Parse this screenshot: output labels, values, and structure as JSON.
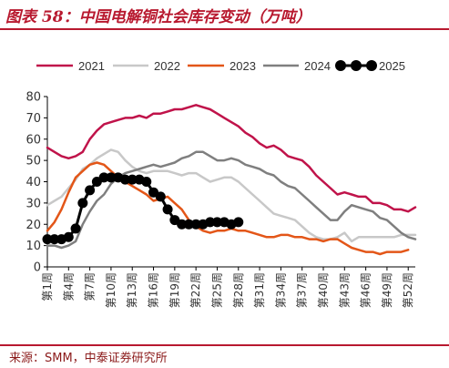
{
  "header": {
    "title": "图表 58：中国电解铜社会库存变动（万吨）"
  },
  "footer": {
    "source": "来源：SMM，中泰证券研究所"
  },
  "colors": {
    "accent": "#b8192f",
    "footer_text": "#8b1a1a"
  },
  "chart_data": {
    "type": "line",
    "title": "",
    "xlabel": "",
    "ylabel": "",
    "ylim": [
      0,
      80
    ],
    "yticks": [
      0,
      10,
      20,
      30,
      40,
      50,
      60,
      70,
      80
    ],
    "x_tick_labels": [
      "第1周",
      "第4周",
      "第7周",
      "第10周",
      "第13周",
      "第16周",
      "第19周",
      "第22周",
      "第25周",
      "第28周",
      "第31周",
      "第34周",
      "第37周",
      "第40周",
      "第43周",
      "第46周",
      "第49周",
      "第52周"
    ],
    "x_tick_weeks": [
      1,
      4,
      7,
      10,
      13,
      16,
      19,
      22,
      25,
      28,
      31,
      34,
      37,
      40,
      43,
      46,
      49,
      52
    ],
    "grid": false,
    "legend_position": "top",
    "series": [
      {
        "name": "2021",
        "color": "#c0134a",
        "marker": false,
        "weeks": [
          1,
          2,
          3,
          4,
          5,
          6,
          7,
          8,
          9,
          10,
          11,
          12,
          13,
          14,
          15,
          16,
          17,
          18,
          19,
          20,
          21,
          22,
          23,
          24,
          25,
          26,
          27,
          28,
          29,
          30,
          31,
          32,
          33,
          34,
          35,
          36,
          37,
          38,
          39,
          40,
          41,
          42,
          43,
          44,
          45,
          46,
          47,
          48,
          49,
          50,
          51,
          52,
          53
        ],
        "values": [
          56,
          54,
          52,
          51,
          52,
          54,
          60,
          64,
          67,
          68,
          69,
          70,
          70,
          71,
          70,
          72,
          72,
          73,
          74,
          74,
          75,
          76,
          75,
          74,
          72,
          70,
          68,
          66,
          63,
          61,
          58,
          56,
          57,
          55,
          52,
          51,
          50,
          47,
          43,
          40,
          37,
          34,
          35,
          34,
          33,
          33,
          30,
          30,
          29,
          27,
          27,
          26,
          28
        ]
      },
      {
        "name": "2022",
        "color": "#c8c8c8",
        "marker": false,
        "weeks": [
          1,
          2,
          3,
          4,
          5,
          6,
          7,
          8,
          9,
          10,
          11,
          12,
          13,
          14,
          15,
          16,
          17,
          18,
          19,
          20,
          21,
          22,
          23,
          24,
          25,
          26,
          27,
          28,
          29,
          30,
          31,
          32,
          33,
          34,
          35,
          36,
          37,
          38,
          39,
          40,
          41,
          42,
          43,
          44,
          45,
          46,
          47,
          48,
          49,
          50,
          51,
          52,
          53
        ],
        "values": [
          29,
          31,
          33,
          37,
          41,
          46,
          48,
          51,
          53,
          55,
          54,
          50,
          47,
          45,
          44,
          45,
          45,
          45,
          44,
          43,
          44,
          44,
          42,
          40,
          41,
          42,
          42,
          40,
          37,
          34,
          31,
          28,
          25,
          24,
          23,
          22,
          19,
          16,
          14,
          13,
          13,
          14,
          16,
          12,
          14,
          14,
          14,
          14,
          14,
          14,
          15,
          15,
          15
        ]
      },
      {
        "name": "2023",
        "color": "#e35618",
        "marker": false,
        "weeks": [
          1,
          2,
          3,
          4,
          5,
          6,
          7,
          8,
          9,
          10,
          11,
          12,
          13,
          14,
          15,
          16,
          17,
          18,
          19,
          20,
          21,
          22,
          23,
          24,
          25,
          26,
          27,
          28,
          29,
          30,
          31,
          32,
          33,
          34,
          35,
          36,
          37,
          38,
          39,
          40,
          41,
          42,
          43,
          44,
          45,
          46,
          47,
          48,
          49,
          50,
          51,
          52
        ],
        "values": [
          17,
          21,
          27,
          35,
          42,
          45,
          48,
          49,
          48,
          45,
          42,
          40,
          38,
          36,
          34,
          31,
          32,
          33,
          30,
          27,
          22,
          19,
          17,
          16,
          17,
          17,
          18,
          17,
          17,
          16,
          15,
          14,
          14,
          15,
          15,
          14,
          14,
          13,
          13,
          12,
          13,
          13,
          11,
          9,
          8,
          7,
          7,
          6,
          7,
          7,
          7,
          8
        ]
      },
      {
        "name": "2024",
        "color": "#7f7f7f",
        "marker": false,
        "weeks": [
          1,
          2,
          3,
          4,
          5,
          6,
          7,
          8,
          9,
          10,
          11,
          12,
          13,
          14,
          15,
          16,
          17,
          18,
          19,
          20,
          21,
          22,
          23,
          24,
          25,
          26,
          27,
          28,
          29,
          30,
          31,
          32,
          33,
          34,
          35,
          36,
          37,
          38,
          39,
          40,
          41,
          42,
          43,
          44,
          45,
          46,
          47,
          48,
          49,
          50,
          51,
          52,
          53
        ],
        "values": [
          10,
          10,
          9,
          10,
          12,
          20,
          26,
          31,
          34,
          39,
          42,
          44,
          45,
          46,
          47,
          48,
          47,
          48,
          49,
          51,
          52,
          54,
          54,
          52,
          50,
          50,
          51,
          50,
          48,
          47,
          46,
          44,
          43,
          40,
          38,
          37,
          34,
          31,
          28,
          25,
          22,
          22,
          26,
          29,
          28,
          27,
          26,
          23,
          22,
          19,
          16,
          14,
          13
        ]
      },
      {
        "name": "2025",
        "color": "#000000",
        "marker": true,
        "weeks": [
          1,
          2,
          3,
          4,
          5,
          6,
          7,
          8,
          9,
          10,
          11,
          12,
          13,
          14,
          15,
          16,
          17,
          18,
          19,
          20,
          21,
          22,
          23,
          24,
          25,
          26,
          27,
          28
        ],
        "values": [
          13,
          13,
          13,
          14,
          18,
          30,
          36,
          40,
          42,
          42,
          42,
          41,
          41,
          41,
          40,
          35,
          33,
          27,
          22,
          20,
          20,
          20,
          20,
          21,
          21,
          21,
          20,
          21
        ]
      }
    ]
  }
}
